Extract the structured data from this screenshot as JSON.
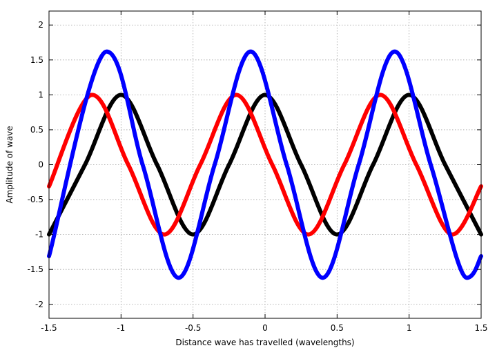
{
  "chart_data": {
    "type": "line",
    "title": "",
    "xlabel": "Distance wave has travelled (wavelengths)",
    "ylabel": "Amplitude of wave",
    "xlim": [
      -1.5,
      1.5
    ],
    "ylim": [
      -2.2,
      2.2
    ],
    "xticks": [
      -1.5,
      -1,
      -0.5,
      0,
      0.5,
      1,
      1.5
    ],
    "xtick_labels": [
      "-1.5",
      "-1",
      "-0.5",
      "0",
      "0.5",
      "1",
      "1.5"
    ],
    "yticks": [
      -2,
      -1.5,
      -1,
      -0.5,
      0,
      0.5,
      1,
      1.5,
      2
    ],
    "ytick_labels": [
      "-2",
      "-1.5",
      "-1",
      "-0.5",
      "0",
      "0.5",
      "1",
      "1.5",
      "2"
    ],
    "grid": true,
    "grid_style": "dotted",
    "legend": "none",
    "series": [
      {
        "color": "#000000",
        "formula": "y = cos(2πx)",
        "x": [
          -1.5,
          -1.25,
          -1.0,
          -0.75,
          -0.5,
          -0.25,
          0.0,
          0.25,
          0.5,
          0.75,
          1.0,
          1.25,
          1.5
        ],
        "values": [
          -1,
          0,
          1,
          0,
          -1,
          0,
          1,
          0,
          -1,
          0,
          1,
          0,
          -1
        ]
      },
      {
        "color": "#ff0000",
        "formula": "y = cos(2π(x + 0.2))",
        "x": [
          -1.5,
          -1.2,
          -0.95,
          -0.7,
          -0.45,
          -0.2,
          0.05,
          0.3,
          0.55,
          0.8,
          1.05,
          1.3,
          1.5
        ],
        "values": [
          -0.31,
          1,
          0,
          -1,
          0,
          1,
          0,
          -1,
          0,
          1,
          0,
          -1,
          -0.31
        ]
      },
      {
        "color": "#0000ff",
        "formula": "y = cos(2πx) + cos(2π(x + 0.2))",
        "x": [
          -1.5,
          -1.1,
          -0.85,
          -0.6,
          -0.35,
          -0.1,
          0.15,
          0.4,
          0.65,
          0.9,
          1.15,
          1.4,
          1.5
        ],
        "values": [
          -1.31,
          1.62,
          0,
          -1.62,
          0,
          1.62,
          0,
          -1.62,
          0,
          1.62,
          0,
          -1.62,
          -1.31
        ]
      }
    ]
  }
}
